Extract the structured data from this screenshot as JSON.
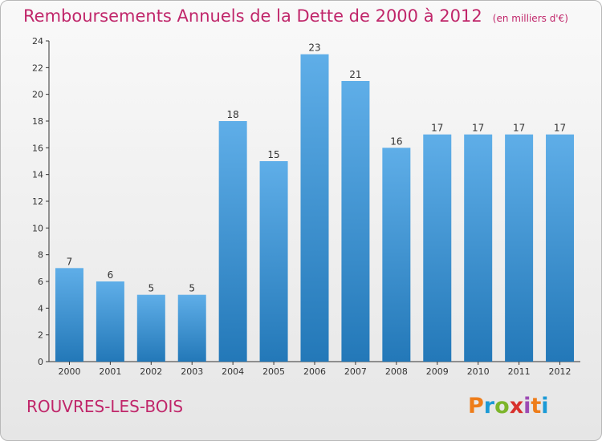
{
  "header": {
    "title": "Remboursements Annuels de la Dette de 2000 à 2012",
    "unit": "(en milliers d'€)"
  },
  "footer": {
    "commune": "ROUVRES-LES-BOIS",
    "logo": "Proxiti"
  },
  "colors": {
    "bar_light": "#5faee8",
    "bar_dark": "#2378b8",
    "title": "#c0266a"
  },
  "chart_data": {
    "type": "bar",
    "title": "Remboursements Annuels de la Dette de 2000 à 2012",
    "xlabel": "",
    "ylabel": "",
    "ylim": [
      0,
      24
    ],
    "yticks": [
      0,
      2,
      4,
      6,
      8,
      10,
      12,
      14,
      16,
      18,
      20,
      22,
      24
    ],
    "grid": false,
    "categories": [
      "2000",
      "2001",
      "2002",
      "2003",
      "2004",
      "2005",
      "2006",
      "2007",
      "2008",
      "2009",
      "2010",
      "2011",
      "2012"
    ],
    "values": [
      7,
      6,
      5,
      5,
      18,
      15,
      23,
      21,
      16,
      17,
      17,
      17,
      17
    ]
  }
}
